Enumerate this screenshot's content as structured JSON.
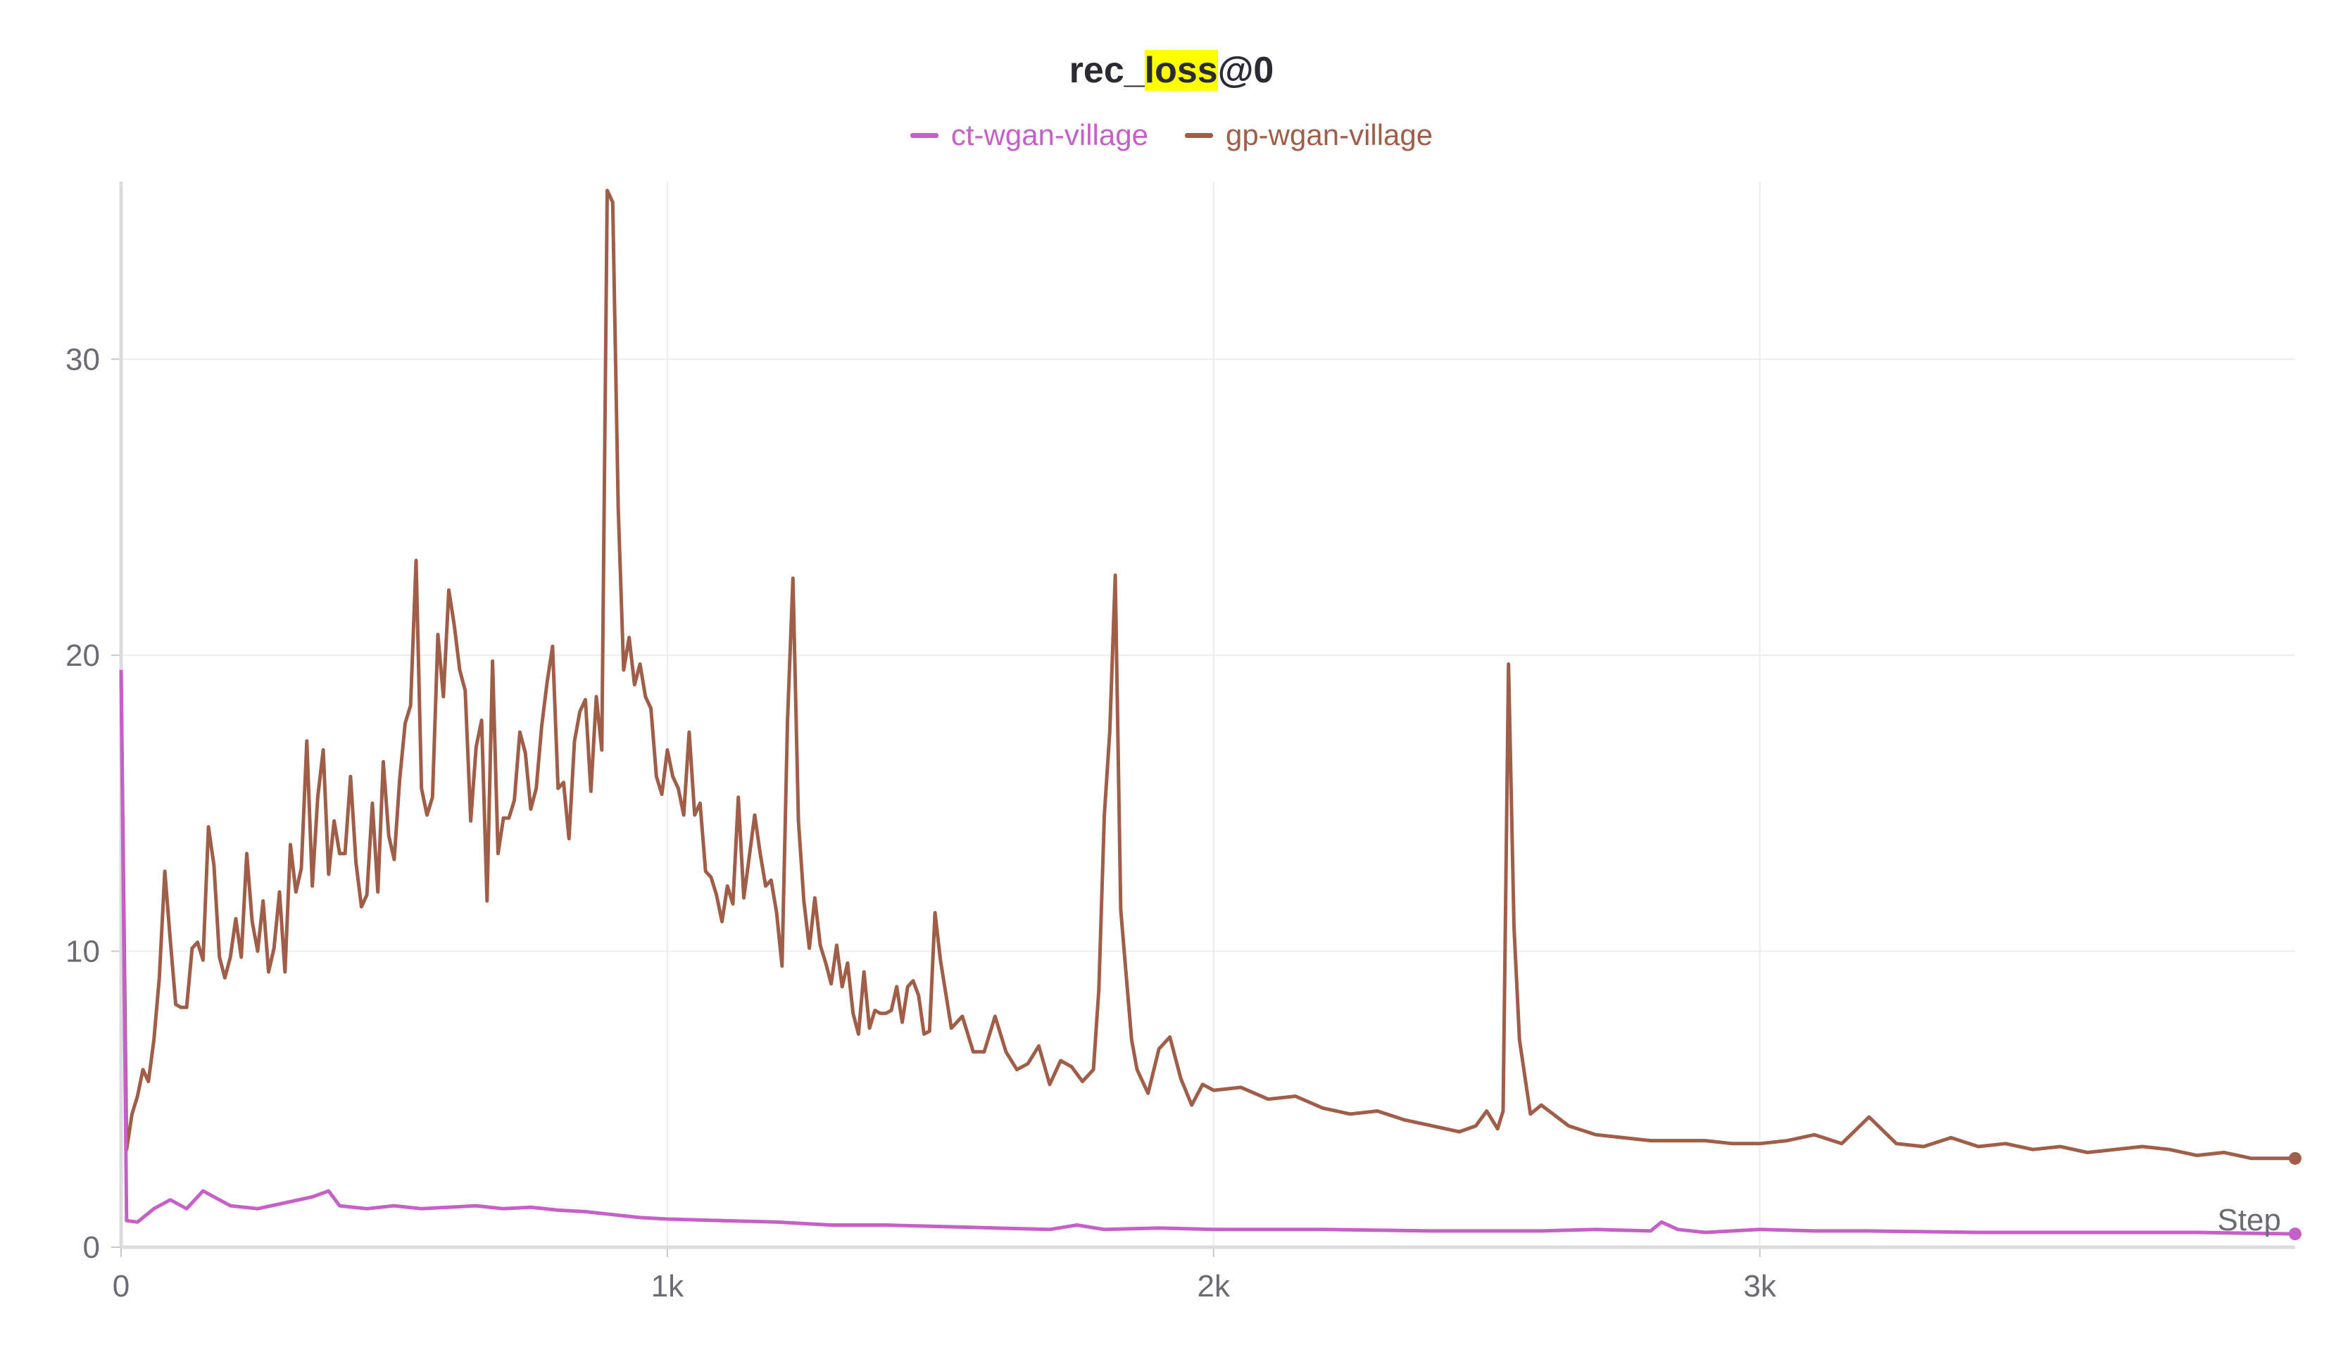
{
  "chart_data": {
    "type": "line",
    "title_prefix": "rec_",
    "title_highlight": "loss",
    "title_suffix": "@0",
    "xlabel": "Step",
    "ylabel": "",
    "xlim": [
      0,
      3980
    ],
    "ylim": [
      0,
      36
    ],
    "x_ticks": [
      0,
      1000,
      2000,
      3000
    ],
    "x_tick_labels": [
      "0",
      "1k",
      "2k",
      "3k"
    ],
    "y_ticks": [
      0,
      10,
      20,
      30
    ],
    "y_tick_labels": [
      "0",
      "10",
      "20",
      "30"
    ],
    "grid": true,
    "legend_position": "top-center",
    "series": [
      {
        "name": "ct-wgan-village",
        "color": "#c75fc8",
        "x": [
          0,
          10,
          30,
          60,
          90,
          120,
          150,
          200,
          250,
          300,
          350,
          380,
          400,
          450,
          500,
          550,
          600,
          650,
          700,
          750,
          800,
          850,
          900,
          950,
          1000,
          1100,
          1200,
          1300,
          1400,
          1500,
          1600,
          1700,
          1750,
          1800,
          1900,
          2000,
          2200,
          2400,
          2600,
          2700,
          2800,
          2820,
          2850,
          2900,
          3000,
          3100,
          3200,
          3400,
          3600,
          3800,
          3980
        ],
        "y": [
          19.5,
          0.9,
          0.85,
          1.3,
          1.6,
          1.3,
          1.9,
          1.4,
          1.3,
          1.5,
          1.7,
          1.9,
          1.4,
          1.3,
          1.4,
          1.3,
          1.35,
          1.4,
          1.3,
          1.35,
          1.25,
          1.2,
          1.1,
          1.0,
          0.95,
          0.9,
          0.85,
          0.75,
          0.75,
          0.7,
          0.65,
          0.6,
          0.75,
          0.6,
          0.65,
          0.6,
          0.6,
          0.55,
          0.55,
          0.6,
          0.55,
          0.85,
          0.6,
          0.5,
          0.6,
          0.55,
          0.55,
          0.5,
          0.5,
          0.5,
          0.45
        ]
      },
      {
        "name": "gp-wgan-village",
        "color": "#a05d48",
        "x": [
          0,
          10,
          20,
          30,
          40,
          50,
          60,
          70,
          80,
          90,
          100,
          110,
          120,
          130,
          140,
          150,
          160,
          170,
          180,
          190,
          200,
          210,
          220,
          230,
          240,
          250,
          260,
          270,
          280,
          290,
          300,
          310,
          320,
          330,
          340,
          350,
          360,
          370,
          380,
          390,
          400,
          410,
          420,
          430,
          440,
          450,
          460,
          470,
          480,
          490,
          500,
          510,
          520,
          530,
          540,
          550,
          560,
          570,
          580,
          590,
          600,
          610,
          620,
          630,
          640,
          650,
          660,
          670,
          680,
          690,
          700,
          710,
          720,
          730,
          740,
          750,
          760,
          770,
          780,
          790,
          800,
          810,
          820,
          830,
          840,
          850,
          860,
          870,
          880,
          890,
          900,
          910,
          920,
          930,
          940,
          950,
          960,
          970,
          980,
          990,
          1000,
          1010,
          1020,
          1030,
          1040,
          1050,
          1060,
          1070,
          1080,
          1090,
          1100,
          1110,
          1120,
          1130,
          1140,
          1150,
          1160,
          1170,
          1180,
          1190,
          1200,
          1210,
          1220,
          1230,
          1240,
          1250,
          1260,
          1270,
          1280,
          1290,
          1300,
          1310,
          1320,
          1330,
          1340,
          1350,
          1360,
          1370,
          1380,
          1390,
          1400,
          1410,
          1420,
          1430,
          1440,
          1450,
          1460,
          1470,
          1480,
          1490,
          1500,
          1520,
          1540,
          1560,
          1580,
          1600,
          1620,
          1640,
          1660,
          1680,
          1700,
          1720,
          1740,
          1760,
          1780,
          1790,
          1800,
          1810,
          1820,
          1830,
          1840,
          1850,
          1860,
          1880,
          1900,
          1920,
          1940,
          1960,
          1980,
          2000,
          2050,
          2100,
          2150,
          2200,
          2250,
          2300,
          2350,
          2400,
          2450,
          2480,
          2500,
          2510,
          2520,
          2530,
          2540,
          2550,
          2560,
          2580,
          2600,
          2650,
          2700,
          2750,
          2800,
          2850,
          2900,
          2950,
          3000,
          3050,
          3100,
          3150,
          3200,
          3250,
          3300,
          3350,
          3400,
          3450,
          3500,
          3550,
          3600,
          3650,
          3700,
          3750,
          3800,
          3850,
          3900,
          3950,
          3980
        ],
        "y": [
          19.5,
          3.3,
          4.5,
          5.1,
          6.0,
          5.6,
          7.0,
          9.1,
          12.7,
          10.4,
          8.2,
          8.1,
          8.1,
          10.1,
          10.3,
          9.7,
          14.2,
          12.9,
          9.8,
          9.1,
          9.8,
          11.1,
          9.8,
          13.3,
          11.0,
          10.0,
          11.7,
          9.3,
          10.1,
          12.0,
          9.3,
          13.6,
          12.0,
          12.8,
          17.1,
          12.2,
          15.2,
          16.8,
          12.6,
          14.4,
          13.3,
          13.3,
          15.9,
          13.0,
          11.5,
          11.9,
          15.0,
          12.0,
          16.4,
          13.9,
          13.1,
          15.8,
          17.7,
          18.3,
          23.2,
          15.5,
          14.6,
          15.2,
          20.7,
          18.6,
          22.2,
          21.0,
          19.5,
          18.8,
          14.4,
          16.9,
          17.8,
          11.7,
          19.8,
          13.3,
          14.5,
          14.5,
          15.1,
          17.4,
          16.7,
          14.8,
          15.5,
          17.6,
          19.1,
          20.3,
          15.5,
          15.7,
          13.8,
          17.1,
          18.1,
          18.5,
          15.4,
          18.6,
          16.8,
          35.7,
          35.3,
          25.0,
          19.5,
          20.6,
          19.0,
          19.7,
          18.6,
          18.2,
          15.9,
          15.3,
          16.8,
          15.9,
          15.5,
          14.6,
          17.4,
          14.6,
          15.0,
          12.7,
          12.5,
          11.9,
          11.0,
          12.2,
          11.6,
          15.2,
          11.8,
          13.2,
          14.6,
          13.3,
          12.2,
          12.4,
          11.3,
          9.5,
          17.8,
          22.6,
          14.4,
          11.7,
          10.1,
          11.8,
          10.2,
          9.6,
          8.9,
          10.2,
          8.8,
          9.6,
          7.9,
          7.2,
          9.3,
          7.4,
          8.0,
          7.9,
          7.9,
          8.0,
          8.8,
          7.6,
          8.8,
          9.0,
          8.5,
          7.2,
          7.3,
          11.3,
          9.7,
          7.4,
          7.8,
          6.6,
          6.6,
          7.8,
          6.6,
          6.0,
          6.2,
          6.8,
          5.5,
          6.3,
          6.1,
          5.6,
          6.0,
          8.7,
          14.6,
          17.4,
          22.7,
          11.4,
          9.2,
          7.0,
          6.0,
          5.2,
          6.7,
          7.1,
          5.7,
          4.8,
          5.5,
          5.3,
          5.4,
          5.0,
          5.1,
          4.7,
          4.5,
          4.6,
          4.3,
          4.1,
          3.9,
          4.1,
          4.6,
          4.3,
          4.0,
          4.6,
          19.7,
          10.8,
          7.0,
          4.5,
          4.8,
          4.1,
          3.8,
          3.7,
          3.6,
          3.6,
          3.6,
          3.5,
          3.5,
          3.6,
          3.8,
          3.5,
          4.4,
          3.5,
          3.4,
          3.7,
          3.4,
          3.5,
          3.3,
          3.4,
          3.2,
          3.3,
          3.4,
          3.3,
          3.1,
          3.2,
          3.0,
          3.0,
          3.0
        ]
      }
    ]
  }
}
